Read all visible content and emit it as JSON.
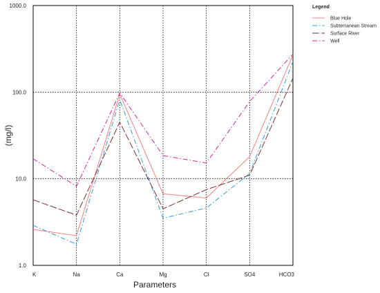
{
  "chart_data": {
    "type": "line",
    "title": "",
    "xlabel": "Parameters",
    "ylabel": "(mg/l)",
    "categories": [
      "K",
      "Na",
      "Ca",
      "Mg",
      "Cl",
      "SO4",
      "HCO3"
    ],
    "y_scale": "log",
    "ylim": [
      1.0,
      1000.0
    ],
    "y_ticks": [
      "1.0",
      "10.0",
      "100.0",
      "1000.0"
    ],
    "grid": "dotted vertical at each category and horizontal at each decade",
    "legend": {
      "title": "Legend",
      "placement": "top-right, outside plot"
    },
    "series": [
      {
        "name": "Blue Hole",
        "color": "#f08080",
        "dash": "solid",
        "values": [
          2.6,
          2.2,
          95,
          6.7,
          6.0,
          18,
          270
        ]
      },
      {
        "name": "Subterranean Stream",
        "color": "#3399dd",
        "dash": "dash-dot",
        "values": [
          2.9,
          1.75,
          82,
          3.5,
          4.6,
          11.5,
          225
        ]
      },
      {
        "name": "Surface River",
        "color": "#7a3030",
        "dash": "long-dash",
        "values": [
          5.7,
          3.8,
          45,
          4.5,
          7.5,
          11,
          145
        ]
      },
      {
        "name": "Well",
        "color": "#dd2299",
        "dash": "dash-dot",
        "values": [
          17,
          8.2,
          98,
          18.5,
          15.2,
          78,
          275
        ]
      }
    ]
  }
}
